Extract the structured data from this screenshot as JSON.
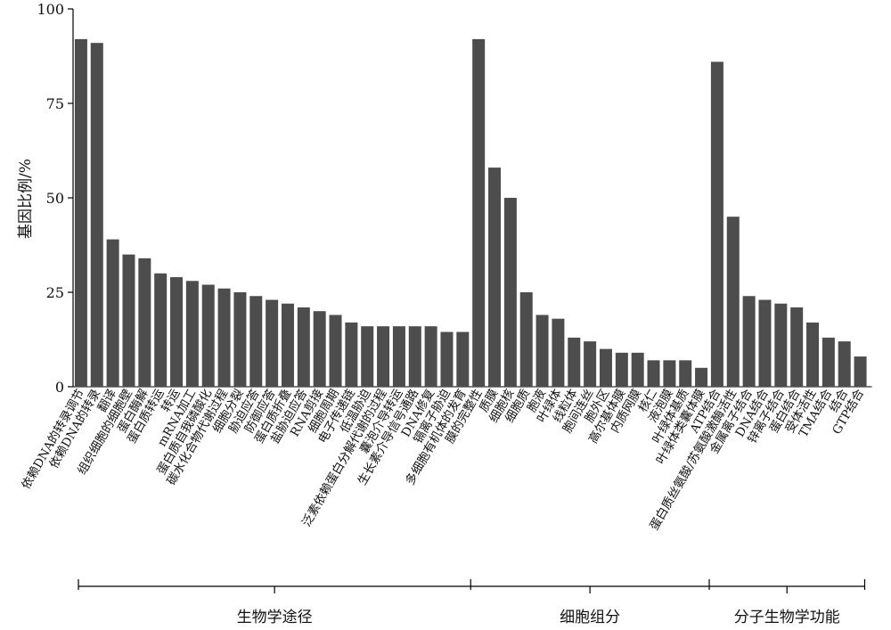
{
  "chart_data": {
    "type": "bar",
    "ylabel": "基因比例/%",
    "ylim": [
      0,
      100
    ],
    "yticks": [
      0,
      25,
      50,
      75,
      100
    ],
    "bar_color": "#4d4d4d",
    "categories": [
      "依赖DNA的转录调节",
      "依赖DNA的转录",
      "翻译",
      "组织细胞的细胞壁",
      "蛋白酶解",
      "蛋白质转运",
      "转运",
      "mRNA加工",
      "蛋白质自我磷酸化",
      "碳水化合物代谢过程",
      "细胞分裂",
      "胁迫应答",
      "防御应答",
      "蛋白质折叠",
      "盐胁迫应答",
      "RNA剪接",
      "细胞周期",
      "电子传递链",
      "低温胁迫",
      "泛素依赖蛋白分解代谢的过程",
      "囊泡介导转运",
      "生长素介导信号通路",
      "DNA修复",
      "镉离子胁迫",
      "多细胞有机体的发育",
      "膜的完整性",
      "质膜",
      "细胞核",
      "细胞质",
      "胞液",
      "叶绿体",
      "线粒体",
      "胞间连丝",
      "胞外区",
      "高尔基体膜",
      "内质网膜",
      "核仁",
      "液泡膜",
      "叶绿体基质",
      "叶绿体类囊体膜",
      "ATP结合",
      "蛋白质丝氨酸/苏氨酸激酶活性",
      "金属离子结合",
      "DNA结合",
      "锌离子结合",
      "蛋白结合",
      "受体活性",
      "TMA结合",
      "结合",
      "GTP结合"
    ],
    "values": [
      92,
      91,
      39,
      35,
      34,
      30,
      29,
      28,
      27,
      26,
      25,
      24,
      23,
      22,
      21,
      20,
      19,
      17,
      16,
      16,
      16,
      16,
      16,
      14.5,
      14.5,
      92,
      58,
      50,
      25,
      19,
      18,
      13,
      12,
      10,
      9,
      9,
      7,
      7,
      7,
      5,
      86,
      45,
      24,
      23,
      22,
      21,
      17,
      13,
      12,
      8
    ],
    "groups": [
      {
        "label": "生物学途径",
        "start": 0,
        "end": 24
      },
      {
        "label": "细胞组分",
        "start": 25,
        "end": 39
      },
      {
        "label": "分子生物学功能",
        "start": 40,
        "end": 49
      }
    ]
  }
}
